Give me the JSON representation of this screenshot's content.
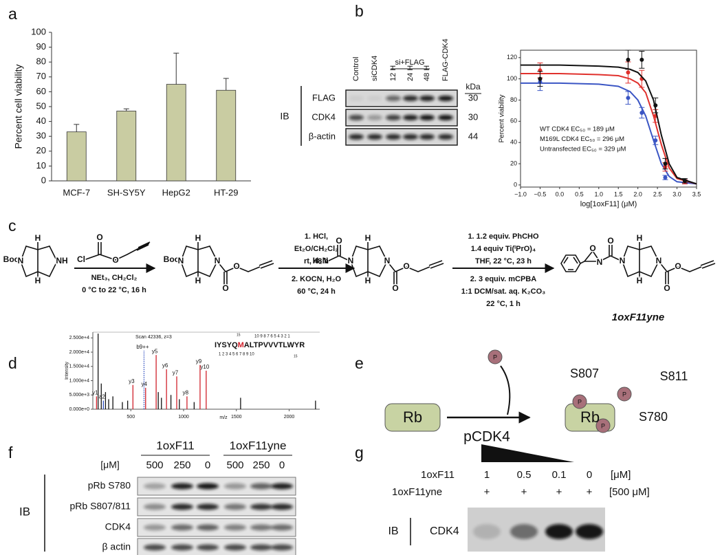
{
  "panel_labels": [
    "a",
    "b",
    "c",
    "d",
    "e",
    "f",
    "g"
  ],
  "chart_data": [
    {
      "type": "bar",
      "y_label": "Percent cell viability",
      "categories": [
        "MCF-7",
        "SH-SY5Y",
        "HepG2",
        "HT-29"
      ],
      "values": [
        33,
        47,
        65,
        61
      ],
      "errors": [
        5,
        1.5,
        21,
        8
      ],
      "color": "#c9cca2",
      "ylim": [
        0,
        100
      ],
      "yticks": [
        0,
        10,
        20,
        30,
        40,
        50,
        60,
        70,
        80,
        90,
        100
      ]
    },
    {
      "type": "dose",
      "x_label": "log[1oxF11] (μM)",
      "y_label": "Percent viability",
      "xlim": [
        -1,
        3.5
      ],
      "ylim": [
        -2,
        127
      ],
      "xticks": [
        {
          "value": -1,
          "label": "−1.0"
        },
        {
          "value": -0.5,
          "label": "−0.5"
        },
        {
          "value": 0,
          "label": "0.0"
        },
        {
          "value": 0.5,
          "label": "0.5"
        },
        {
          "value": 1,
          "label": "1.0"
        },
        {
          "value": 1.5,
          "label": "1.5"
        },
        {
          "value": 2,
          "label": "2.0"
        },
        {
          "value": 2.5,
          "label": "2.5"
        },
        {
          "value": 3,
          "label": "3.0"
        },
        {
          "value": 3.5,
          "label": "3.5"
        }
      ],
      "yticks": [
        0,
        20,
        40,
        60,
        80,
        100,
        120
      ],
      "legend": "lower left",
      "x": [
        -0.5,
        1.75,
        2.1,
        2.45,
        2.7,
        3.2
      ],
      "series": [
        {
          "name": "WT CDK4 EC₅₀ = 189 μM",
          "color": "#3a55c4",
          "values": [
            97,
            82,
            68,
            42,
            7,
            3
          ],
          "errors": [
            8,
            6,
            5,
            4,
            2,
            2
          ],
          "fit": {
            "x": [
              -1,
              0,
              1,
              1.5,
              1.8,
              2,
              2.2,
              2.4,
              2.6,
              2.8,
              3,
              3.5
            ],
            "values": [
              96,
              96,
              95,
              93,
              88,
              80,
              65,
              42,
              20,
              8,
              3,
              1
            ]
          }
        },
        {
          "name": "M169L CDK4 EC₅₀ = 296 μM",
          "color": "#e0302c",
          "values": [
            108,
            106,
            100,
            65,
            17,
            3
          ],
          "errors": [
            7,
            10,
            8,
            6,
            4,
            2
          ],
          "fit": {
            "x": [
              -1,
              0,
              1,
              1.5,
              1.8,
              2,
              2.2,
              2.4,
              2.6,
              2.8,
              3,
              3.5
            ],
            "values": [
              105,
              105,
              104,
              103,
              100,
              96,
              87,
              65,
              38,
              16,
              6,
              1
            ]
          }
        },
        {
          "name": "Untransfected EC₅₀ = 329 μM",
          "color": "#111111",
          "values": [
            100,
            118,
            118,
            75,
            20,
            4
          ],
          "errors": [
            7,
            9,
            8,
            7,
            5,
            2
          ],
          "fit": {
            "x": [
              -1,
              0,
              1,
              1.5,
              1.8,
              2,
              2.2,
              2.4,
              2.6,
              2.8,
              3,
              3.5
            ],
            "values": [
              113,
              113,
              112,
              111,
              109,
              106,
              98,
              80,
              47,
              20,
              7,
              1
            ]
          }
        }
      ]
    },
    {
      "type": "spectrum",
      "title": "Scan 42336, z=3",
      "y_label": "Intensity",
      "x_label": "m/z",
      "xlim": [
        140,
        2290
      ],
      "ylim": [
        0,
        27000
      ],
      "yticks": [
        {
          "value": 0,
          "label": "0.000e+0"
        },
        {
          "value": 5000,
          "label": "5.000e+3"
        },
        {
          "value": 10000,
          "label": "1.000e+4"
        },
        {
          "value": 15000,
          "label": "1.500e+4"
        },
        {
          "value": 20000,
          "label": "2.000e+4"
        },
        {
          "value": 25000,
          "label": "2.500e+4"
        }
      ],
      "xticks": [
        500,
        1000,
        1500,
        2000
      ],
      "x": [
        175,
        190,
        220,
        240,
        260,
        290,
        330,
        420,
        470,
        520,
        625,
        640,
        740,
        760,
        790,
        838,
        880,
        935,
        960,
        1032,
        1100,
        1156,
        1214,
        1540,
        2250
      ],
      "values": [
        4500,
        26500,
        9000,
        3000,
        6000,
        3500,
        4500,
        2500,
        3000,
        8500,
        20500,
        7500,
        19000,
        6000,
        4000,
        14000,
        5000,
        11500,
        3500,
        4500,
        2500,
        15500,
        13500,
        4000,
        3000
      ],
      "labels": [
        "y1",
        null,
        null,
        "a2",
        null,
        null,
        null,
        null,
        null,
        "y3",
        "b9++",
        "y4",
        "y5",
        null,
        null,
        "y6",
        null,
        "y7",
        null,
        "y8",
        null,
        "y9",
        "y10",
        null,
        null
      ],
      "colors": [
        "#d0202a",
        "#111111",
        "#111111",
        "#3050c0",
        "#111111",
        "#111111",
        "#111111",
        "#111111",
        "#111111",
        "#d0202a",
        "#3050c0",
        "#d0202a",
        "#d0202a",
        "#111111",
        "#111111",
        "#d0202a",
        "#111111",
        "#d0202a",
        "#111111",
        "#d0202a",
        "#111111",
        "#d0202a",
        "#d0202a",
        "#111111",
        "#111111"
      ],
      "sequence": [
        "IYSYQ",
        "M",
        "ALTPVVVTLWYR"
      ],
      "y_ladder": "10 9 8 7 6 5 4 3 2 1",
      "b_ladder": "1 2 3 4 5 6 7 8 9 10",
      "ladder_marks": [
        "15",
        "15"
      ]
    }
  ],
  "blot_b": {
    "lanes": [
      "Control",
      "siCDK4",
      "12 H",
      "24 H",
      "48 H",
      "FLAG-CDK4"
    ],
    "group": "si+FLAG",
    "kda_header": "kDa",
    "rows": [
      "FLAG",
      "CDK4",
      "β-actin"
    ],
    "kda": [
      "30",
      "30",
      "44"
    ],
    "ib": "IB"
  },
  "scheme": {
    "compound_1": [
      "Boc",
      "N",
      "NH",
      "H",
      "H"
    ],
    "reagent_1": [
      "O",
      "Cl",
      "O"
    ],
    "step_1_below": [
      "NEt₃, CH₂Cl₂",
      "0 °C to 22 °C, 16 h"
    ],
    "compound_2": [
      "Boc",
      "N",
      "H",
      "H",
      "N",
      "O",
      "O"
    ],
    "step_2_above": [
      "1. HCl,",
      "Et₂O/CH₂Cl₂",
      "rt, 48 h"
    ],
    "step_2_below": [
      "2. KOCN, H₂O",
      "60 °C, 24 h"
    ],
    "compound_3": [
      "O",
      "H₂N",
      "N",
      "H",
      "H",
      "N",
      "O",
      "O"
    ],
    "step_3_above": [
      "1. 1.2 equiv. PhCHO",
      "1.4 equiv Ti(ⁱPrO)₄",
      "THF, 22 °C, 23 h"
    ],
    "step_3_below": [
      "2. 3 equiv. mCPBA",
      "1:1 DCM/sat. aq. K₂CO₃",
      "22 °C, 1 h"
    ],
    "compound_4": [
      "O",
      "N",
      "O",
      "N",
      "H",
      "H",
      "N",
      "O",
      "O"
    ],
    "product_name": "1oxF11yne"
  },
  "diagram_e": {
    "substrate": "Rb",
    "enzyme": "pCDK4",
    "phosphate": "P",
    "product": "Rb",
    "sites": [
      "S807",
      "S811",
      "S780"
    ]
  },
  "blot_f": {
    "groups": [
      "1oxF11",
      "1oxF11yne"
    ],
    "unit": "[μM]",
    "doses": [
      "500",
      "250",
      "0",
      "500",
      "250",
      "0"
    ],
    "rows": [
      "pRb S780",
      "pRb S807/811",
      "CDK4",
      "β actin"
    ],
    "ib": "IB"
  },
  "blot_g": {
    "compound": "1oxF11",
    "doses": [
      "1",
      "0.5",
      "0.1",
      "0"
    ],
    "unit": "[μM]",
    "probe": "1oxF11yne",
    "probe_marks": [
      "+",
      "+",
      "+",
      "+"
    ],
    "probe_dose": "[500 μM]",
    "ib": "IB",
    "row": "CDK4"
  }
}
